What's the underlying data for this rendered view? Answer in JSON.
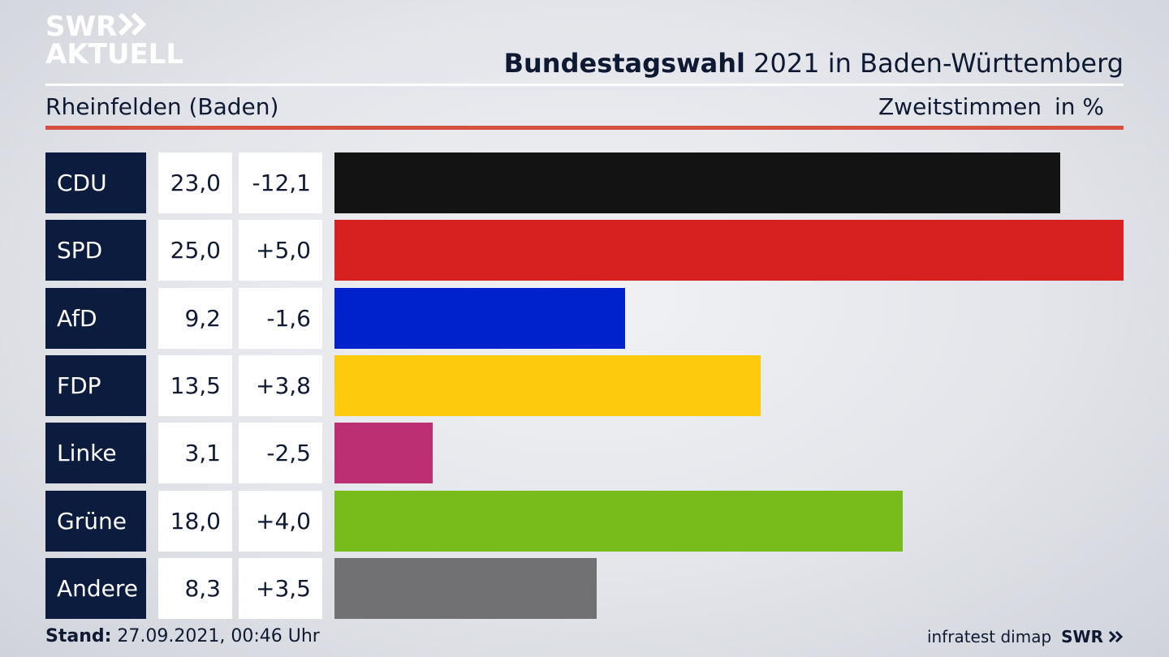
{
  "brand": {
    "line1": "SWR",
    "line2": "AKTUELL",
    "chevrons_icon": "double-chevron-icon"
  },
  "header": {
    "title_bold": "Bundestagswahl",
    "title_rest": "2021 in Baden-Württemberg",
    "subtitle": "Rheinfelden (Baden)",
    "measure": "Zweitstimmen",
    "unit": "in %"
  },
  "footer": {
    "stand_label": "Stand:",
    "stand_value": "27.09.2021, 00:46 Uhr",
    "source": "infratest dimap",
    "swr": "SWR"
  },
  "colors": {
    "party_box": "#0c1c3e",
    "accent_rule": "#d7503f"
  },
  "chart_data": {
    "type": "bar",
    "title": "Bundestagswahl 2021 in Baden-Württemberg",
    "subtitle": "Rheinfelden (Baden)",
    "xlabel": "Zweitstimmen",
    "ylabel": "in %",
    "xlim": [
      0,
      25
    ],
    "orientation": "horizontal",
    "categories": [
      "CDU",
      "SPD",
      "AfD",
      "FDP",
      "Linke",
      "Grüne",
      "Andere"
    ],
    "values": [
      23.0,
      25.0,
      9.2,
      13.5,
      3.1,
      18.0,
      8.3
    ],
    "value_labels": [
      "23,0",
      "25,0",
      "9,2",
      "13,5",
      "3,1",
      "18,0",
      "8,3"
    ],
    "diff_labels": [
      "-12,1",
      "+5,0",
      "-1,6",
      "+3,8",
      "-2,5",
      "+4,0",
      "+3,5"
    ],
    "colors": [
      "#131313",
      "#d72020",
      "#0022cc",
      "#fecb0c",
      "#bc3073",
      "#78bc1b",
      "#717173"
    ]
  }
}
